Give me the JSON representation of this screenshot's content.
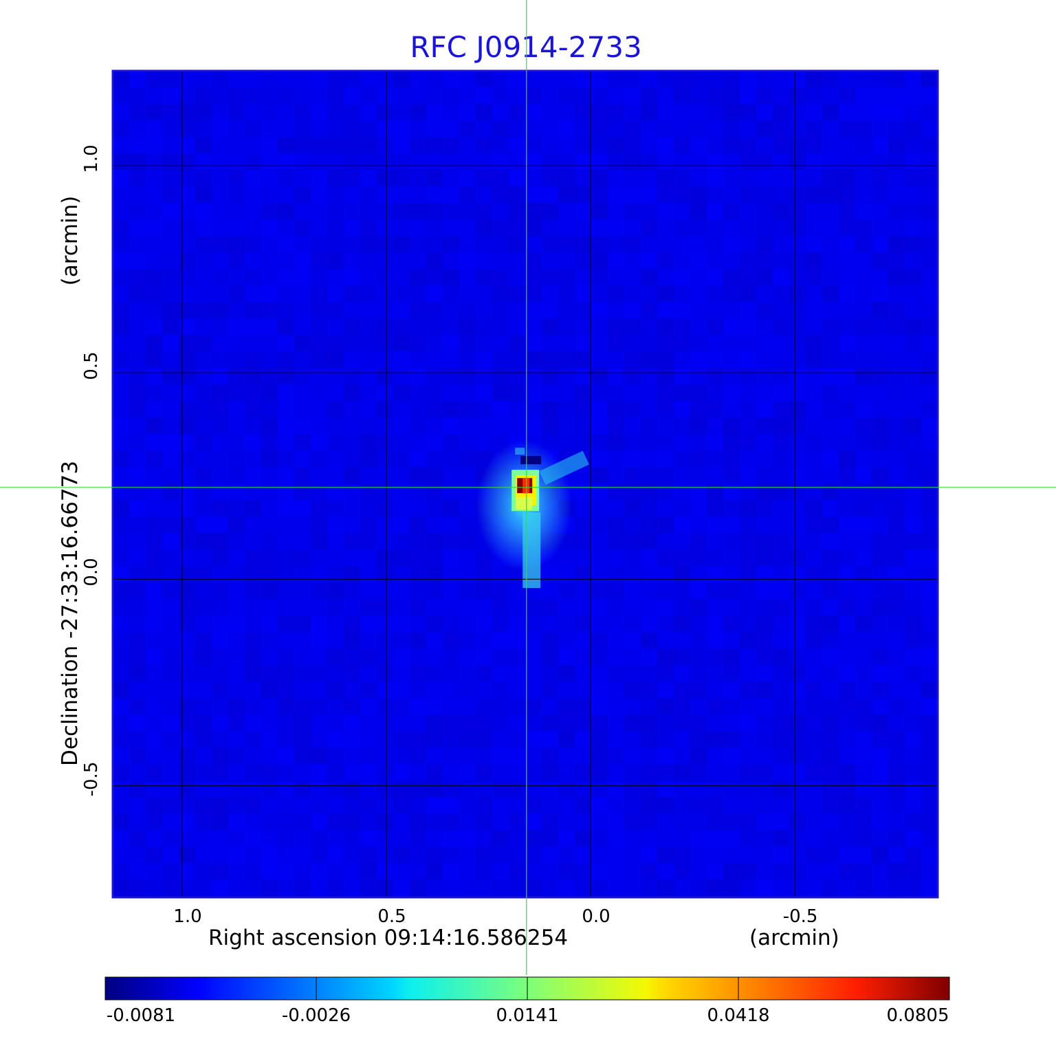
{
  "chart_data": {
    "type": "heatmap",
    "title": "RFC J0914-2733",
    "xlabel": "Right ascension  09:14:16.586254",
    "xunit": "(arcmin)",
    "ylabel": "Declination  -27:33:16.66773",
    "yunit": "(arcmin)",
    "xlim": [
      1.17,
      -0.85
    ],
    "ylim": [
      -0.77,
      1.23
    ],
    "x_ticks": [
      "1.0",
      "0.5",
      "0.0",
      "-0.5"
    ],
    "x_tick_values": [
      1.0,
      0.5,
      0.0,
      -0.5
    ],
    "y_ticks": [
      "1.0",
      "0.5",
      "0.0",
      "-0.5"
    ],
    "y_tick_values": [
      1.0,
      0.5,
      0.0,
      -0.5
    ],
    "grid": true,
    "crosshair": {
      "x": 0.157,
      "y": 0.222,
      "color": "#33dd33"
    },
    "colormap": "jet",
    "colorbar_ticks": [
      "-0.0081",
      "-0.0026",
      "0.0141",
      "0.0418",
      "0.0805"
    ],
    "colorbar_range": [
      -0.0081,
      0.0805
    ],
    "peak": {
      "x": 0.163,
      "y": 0.228,
      "value": 0.0805
    },
    "negative_spot": {
      "x": 0.148,
      "y": 0.288,
      "value": -0.0081
    },
    "background_value": 0.001
  }
}
